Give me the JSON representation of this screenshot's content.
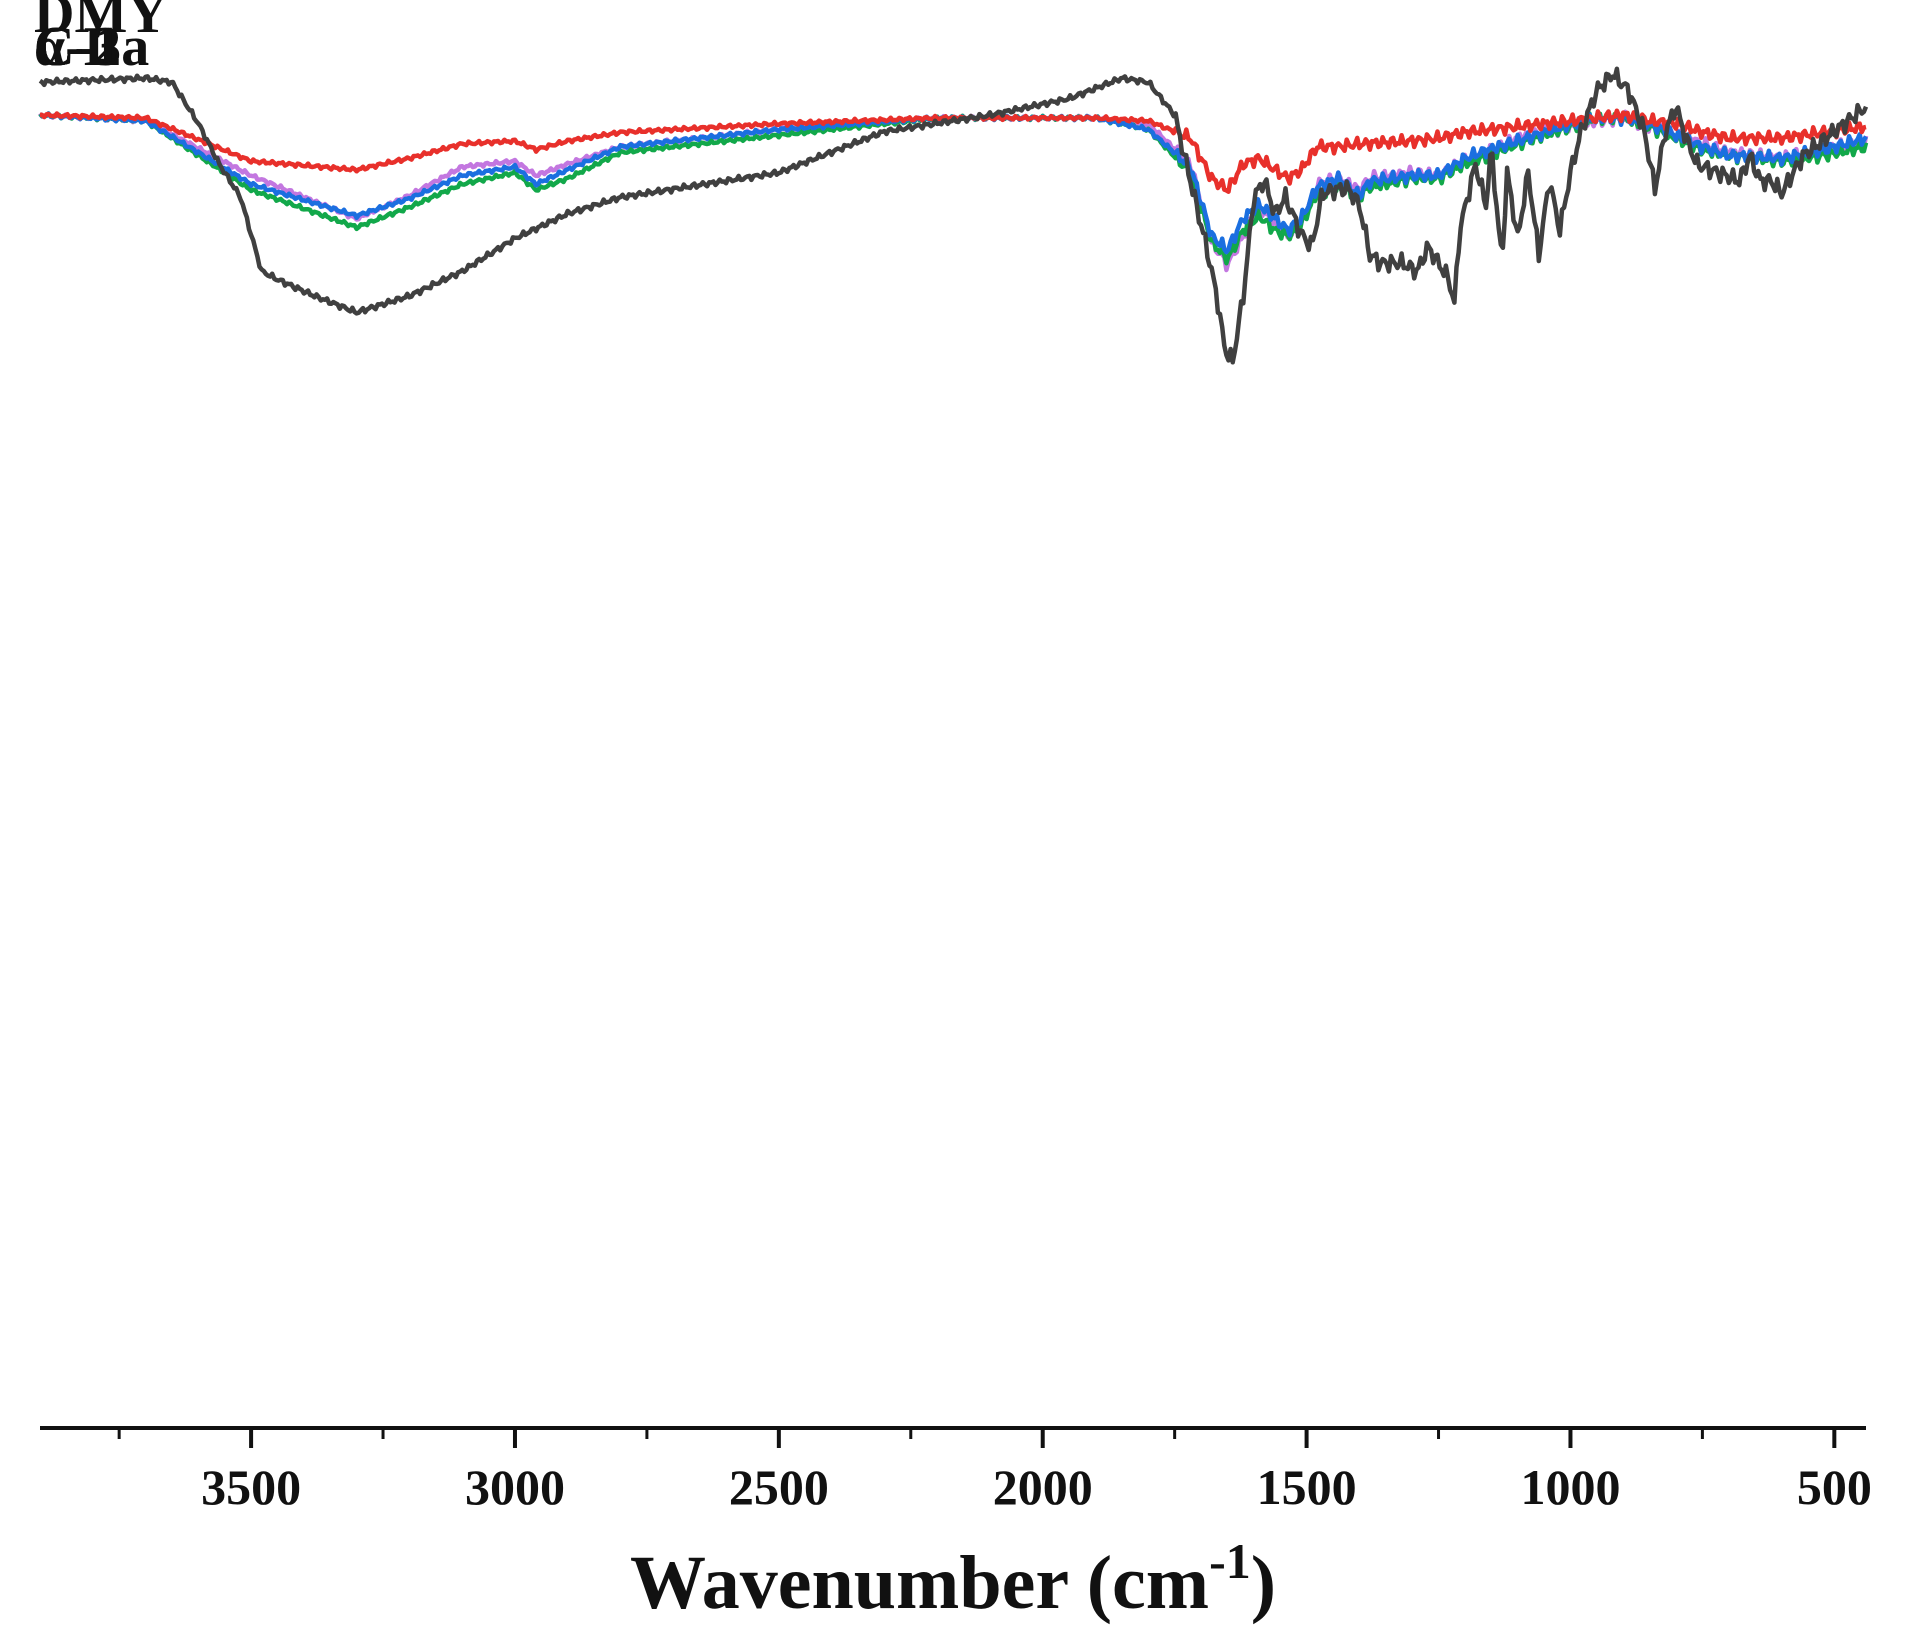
{
  "chart_data": {
    "type": "line",
    "title": "",
    "xlabel": "Wavenumber (cm",
    "xlabel_sup": "-1",
    "xlabel_close": ")",
    "ylabel": "",
    "xlim": [
      3900,
      440
    ],
    "x_reversed": true,
    "grid": false,
    "legend": "none",
    "x_ticks": [
      3500,
      3000,
      2500,
      2000,
      1500,
      1000,
      500
    ],
    "x_tick_labels": [
      "3500",
      "3000",
      "2500",
      "2000",
      "1500",
      "1000",
      "500"
    ],
    "x_minor_ticks": [
      3750,
      3250,
      2750,
      2250,
      1750,
      1250,
      750
    ],
    "series": [
      {
        "name": "C-3",
        "color": "#c377e0",
        "baseline": 0.93,
        "amplitude": 0.035,
        "points": [
          [
            3900,
            0
          ],
          [
            3700,
            0.1
          ],
          [
            3500,
            1.05
          ],
          [
            3300,
            1.8
          ],
          [
            3200,
            1.4
          ],
          [
            3100,
            0.9
          ],
          [
            3000,
            0.8
          ],
          [
            2960,
            1.05
          ],
          [
            2900,
            0.85
          ],
          [
            2800,
            0.55
          ],
          [
            2500,
            0.25
          ],
          [
            2200,
            0.05
          ],
          [
            1900,
            0.05
          ],
          [
            1800,
            0.15
          ],
          [
            1720,
            0.85
          ],
          [
            1680,
            2.2
          ],
          [
            1650,
            2.6
          ],
          [
            1620,
            2.1
          ],
          [
            1590,
            1.6
          ],
          [
            1560,
            1.9
          ],
          [
            1535,
            2.1
          ],
          [
            1510,
            1.9
          ],
          [
            1480,
            1.2
          ],
          [
            1440,
            1.1
          ],
          [
            1400,
            1.3
          ],
          [
            1380,
            1.1
          ],
          [
            1300,
            1.0
          ],
          [
            1250,
            1.05
          ],
          [
            1200,
            0.8
          ],
          [
            1170,
            0.7
          ],
          [
            1100,
            0.4
          ],
          [
            1000,
            0.2
          ],
          [
            950,
            0.1
          ],
          [
            900,
            0.05
          ],
          [
            850,
            0.2
          ],
          [
            800,
            0.35
          ],
          [
            750,
            0.5
          ],
          [
            700,
            0.65
          ],
          [
            600,
            0.75
          ],
          [
            520,
            0.6
          ],
          [
            440,
            0.45
          ]
        ]
      },
      {
        "name": "C-2",
        "color": "#12a84a",
        "baseline": 0.93,
        "amplitude": 0.035,
        "points": [
          [
            3900,
            0
          ],
          [
            3700,
            0.1
          ],
          [
            3500,
            1.3
          ],
          [
            3300,
            1.95
          ],
          [
            3200,
            1.6
          ],
          [
            3100,
            1.2
          ],
          [
            3000,
            1.0
          ],
          [
            2960,
            1.3
          ],
          [
            2900,
            1.1
          ],
          [
            2800,
            0.65
          ],
          [
            2500,
            0.35
          ],
          [
            2200,
            0.05
          ],
          [
            1900,
            0.05
          ],
          [
            1800,
            0.25
          ],
          [
            1720,
            1.0
          ],
          [
            1680,
            2.2
          ],
          [
            1650,
            2.5
          ],
          [
            1620,
            2.0
          ],
          [
            1590,
            1.75
          ],
          [
            1560,
            2.0
          ],
          [
            1535,
            2.1
          ],
          [
            1510,
            1.9
          ],
          [
            1480,
            1.35
          ],
          [
            1440,
            1.25
          ],
          [
            1400,
            1.4
          ],
          [
            1380,
            1.25
          ],
          [
            1300,
            1.1
          ],
          [
            1250,
            1.1
          ],
          [
            1200,
            0.85
          ],
          [
            1170,
            0.75
          ],
          [
            1100,
            0.5
          ],
          [
            1000,
            0.2
          ],
          [
            950,
            0.05
          ],
          [
            900,
            0.05
          ],
          [
            850,
            0.2
          ],
          [
            800,
            0.4
          ],
          [
            750,
            0.6
          ],
          [
            700,
            0.7
          ],
          [
            600,
            0.8
          ],
          [
            520,
            0.7
          ],
          [
            440,
            0.55
          ]
        ]
      },
      {
        "name": "C-1",
        "color": "#1b6fe0",
        "baseline": 0.93,
        "amplitude": 0.035,
        "points": [
          [
            3900,
            0
          ],
          [
            3700,
            0.1
          ],
          [
            3500,
            1.2
          ],
          [
            3300,
            1.75
          ],
          [
            3200,
            1.45
          ],
          [
            3100,
            1.05
          ],
          [
            3000,
            0.9
          ],
          [
            2960,
            1.2
          ],
          [
            2900,
            0.95
          ],
          [
            2800,
            0.55
          ],
          [
            2500,
            0.25
          ],
          [
            2200,
            0.05
          ],
          [
            1900,
            0.05
          ],
          [
            1800,
            0.25
          ],
          [
            1720,
            0.9
          ],
          [
            1680,
            2.1
          ],
          [
            1650,
            2.35
          ],
          [
            1620,
            1.8
          ],
          [
            1590,
            1.55
          ],
          [
            1560,
            1.8
          ],
          [
            1535,
            2.0
          ],
          [
            1510,
            1.8
          ],
          [
            1480,
            1.25
          ],
          [
            1440,
            1.1
          ],
          [
            1400,
            1.4
          ],
          [
            1380,
            1.15
          ],
          [
            1300,
            1.05
          ],
          [
            1250,
            1.05
          ],
          [
            1200,
            0.75
          ],
          [
            1170,
            0.65
          ],
          [
            1100,
            0.45
          ],
          [
            1000,
            0.15
          ],
          [
            950,
            0.05
          ],
          [
            900,
            0.05
          ],
          [
            850,
            0.15
          ],
          [
            800,
            0.35
          ],
          [
            750,
            0.55
          ],
          [
            700,
            0.7
          ],
          [
            600,
            0.75
          ],
          [
            520,
            0.6
          ],
          [
            440,
            0.4
          ]
        ]
      },
      {
        "name": "α-La",
        "color": "#e8302b",
        "baseline": 0.93,
        "amplitude": 0.035,
        "points": [
          [
            3900,
            0
          ],
          [
            3700,
            0.05
          ],
          [
            3500,
            0.8
          ],
          [
            3300,
            0.95
          ],
          [
            3200,
            0.75
          ],
          [
            3100,
            0.5
          ],
          [
            3000,
            0.45
          ],
          [
            2960,
            0.6
          ],
          [
            2900,
            0.45
          ],
          [
            2800,
            0.3
          ],
          [
            2500,
            0.15
          ],
          [
            2200,
            0.05
          ],
          [
            1900,
            0.05
          ],
          [
            1800,
            0.1
          ],
          [
            1720,
            0.4
          ],
          [
            1680,
            1.1
          ],
          [
            1650,
            1.3
          ],
          [
            1620,
            0.85
          ],
          [
            1590,
            0.75
          ],
          [
            1560,
            0.95
          ],
          [
            1535,
            1.1
          ],
          [
            1510,
            0.95
          ],
          [
            1480,
            0.55
          ],
          [
            1440,
            0.55
          ],
          [
            1400,
            0.5
          ],
          [
            1300,
            0.45
          ],
          [
            1250,
            0.4
          ],
          [
            1200,
            0.3
          ],
          [
            1100,
            0.2
          ],
          [
            1000,
            0.1
          ],
          [
            900,
            0.0
          ],
          [
            850,
            0.1
          ],
          [
            800,
            0.15
          ],
          [
            750,
            0.3
          ],
          [
            700,
            0.4
          ],
          [
            600,
            0.4
          ],
          [
            520,
            0.3
          ],
          [
            440,
            0.2
          ]
        ]
      },
      {
        "name": "DMY",
        "color": "#404040",
        "baseline": 0.95,
        "amplitude": 0.05,
        "points": [
          [
            3900,
            0
          ],
          [
            3700,
            -0.05
          ],
          [
            3650,
            0
          ],
          [
            3600,
            0.5
          ],
          [
            3560,
            1.0
          ],
          [
            3520,
            1.4
          ],
          [
            3480,
            2.3
          ],
          [
            3450,
            2.4
          ],
          [
            3380,
            2.6
          ],
          [
            3300,
            2.8
          ],
          [
            3200,
            2.6
          ],
          [
            3100,
            2.3
          ],
          [
            3000,
            1.9
          ],
          [
            2900,
            1.6
          ],
          [
            2800,
            1.4
          ],
          [
            2500,
            1.1
          ],
          [
            2300,
            0.6
          ],
          [
            2100,
            0.4
          ],
          [
            1950,
            0.2
          ],
          [
            1850,
            -0.05
          ],
          [
            1800,
            0
          ],
          [
            1750,
            0.4
          ],
          [
            1720,
            1.2
          ],
          [
            1690,
            2.0
          ],
          [
            1670,
            2.6
          ],
          [
            1655,
            3.25
          ],
          [
            1640,
            3.4
          ],
          [
            1620,
            2.6
          ],
          [
            1600,
            1.4
          ],
          [
            1580,
            1.2
          ],
          [
            1560,
            1.6
          ],
          [
            1540,
            1.4
          ],
          [
            1510,
            1.85
          ],
          [
            1490,
            2.0
          ],
          [
            1470,
            1.35
          ],
          [
            1440,
            1.3
          ],
          [
            1420,
            1.3
          ],
          [
            1400,
            1.5
          ],
          [
            1380,
            2.1
          ],
          [
            1360,
            2.2
          ],
          [
            1320,
            2.2
          ],
          [
            1290,
            2.3
          ],
          [
            1270,
            2.0
          ],
          [
            1250,
            2.2
          ],
          [
            1230,
            2.4
          ],
          [
            1220,
            2.7
          ],
          [
            1210,
            1.8
          ],
          [
            1180,
            1.0
          ],
          [
            1160,
            1.5
          ],
          [
            1150,
            0.8
          ],
          [
            1130,
            2.2
          ],
          [
            1120,
            1.1
          ],
          [
            1100,
            1.9
          ],
          [
            1080,
            1.1
          ],
          [
            1060,
            2.1
          ],
          [
            1040,
            1.2
          ],
          [
            1020,
            1.8
          ],
          [
            1000,
            1.1
          ],
          [
            980,
            0.6
          ],
          [
            950,
            0.1
          ],
          [
            920,
            -0.1
          ],
          [
            890,
            0.1
          ],
          [
            860,
            0.6
          ],
          [
            840,
            1.3
          ],
          [
            820,
            0.6
          ],
          [
            800,
            0.3
          ],
          [
            780,
            0.7
          ],
          [
            760,
            1.0
          ],
          [
            720,
            1.1
          ],
          [
            680,
            1.2
          ],
          [
            660,
            0.9
          ],
          [
            640,
            1.2
          ],
          [
            620,
            1.2
          ],
          [
            600,
            1.35
          ],
          [
            560,
            0.9
          ],
          [
            520,
            0.7
          ],
          [
            480,
            0.5
          ],
          [
            440,
            0.3
          ]
        ]
      }
    ]
  }
}
